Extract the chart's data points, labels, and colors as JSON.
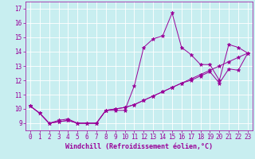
{
  "xlabel": "Windchill (Refroidissement éolien,°C)",
  "bg_color": "#c8eef0",
  "line_color": "#990099",
  "x_data": [
    0,
    1,
    2,
    3,
    4,
    5,
    6,
    7,
    8,
    9,
    10,
    11,
    12,
    13,
    14,
    15,
    16,
    17,
    18,
    19,
    20,
    21,
    22,
    23
  ],
  "line1": [
    10.2,
    9.7,
    9.0,
    9.2,
    9.3,
    9.0,
    9.0,
    9.0,
    9.9,
    9.9,
    9.9,
    11.6,
    14.3,
    14.9,
    15.1,
    16.7,
    14.3,
    13.8,
    13.1,
    13.1,
    12.0,
    14.5,
    14.3,
    13.9
  ],
  "line2": [
    10.2,
    9.7,
    9.0,
    9.1,
    9.2,
    9.0,
    9.0,
    9.0,
    9.9,
    10.0,
    10.1,
    10.3,
    10.6,
    10.9,
    11.2,
    11.5,
    11.8,
    12.1,
    12.4,
    12.7,
    13.0,
    13.3,
    13.6,
    13.9
  ],
  "line3": [
    10.2,
    9.7,
    9.0,
    9.1,
    9.2,
    9.0,
    9.0,
    9.0,
    9.9,
    10.0,
    10.1,
    10.3,
    10.6,
    10.9,
    11.2,
    11.5,
    11.8,
    12.0,
    12.3,
    12.6,
    11.8,
    12.8,
    12.7,
    13.9
  ],
  "xlim": [
    -0.5,
    23.5
  ],
  "ylim": [
    8.5,
    17.5
  ],
  "yticks": [
    9,
    10,
    11,
    12,
    13,
    14,
    15,
    16,
    17
  ],
  "xticks": [
    0,
    1,
    2,
    3,
    4,
    5,
    6,
    7,
    8,
    9,
    10,
    11,
    12,
    13,
    14,
    15,
    16,
    17,
    18,
    19,
    20,
    21,
    22,
    23
  ],
  "grid_color": "#ffffff",
  "font_color": "#990099",
  "marker": "*",
  "markersize": 3.5,
  "linewidth": 0.7,
  "tick_fontsize": 5.5,
  "xlabel_fontsize": 6.0
}
